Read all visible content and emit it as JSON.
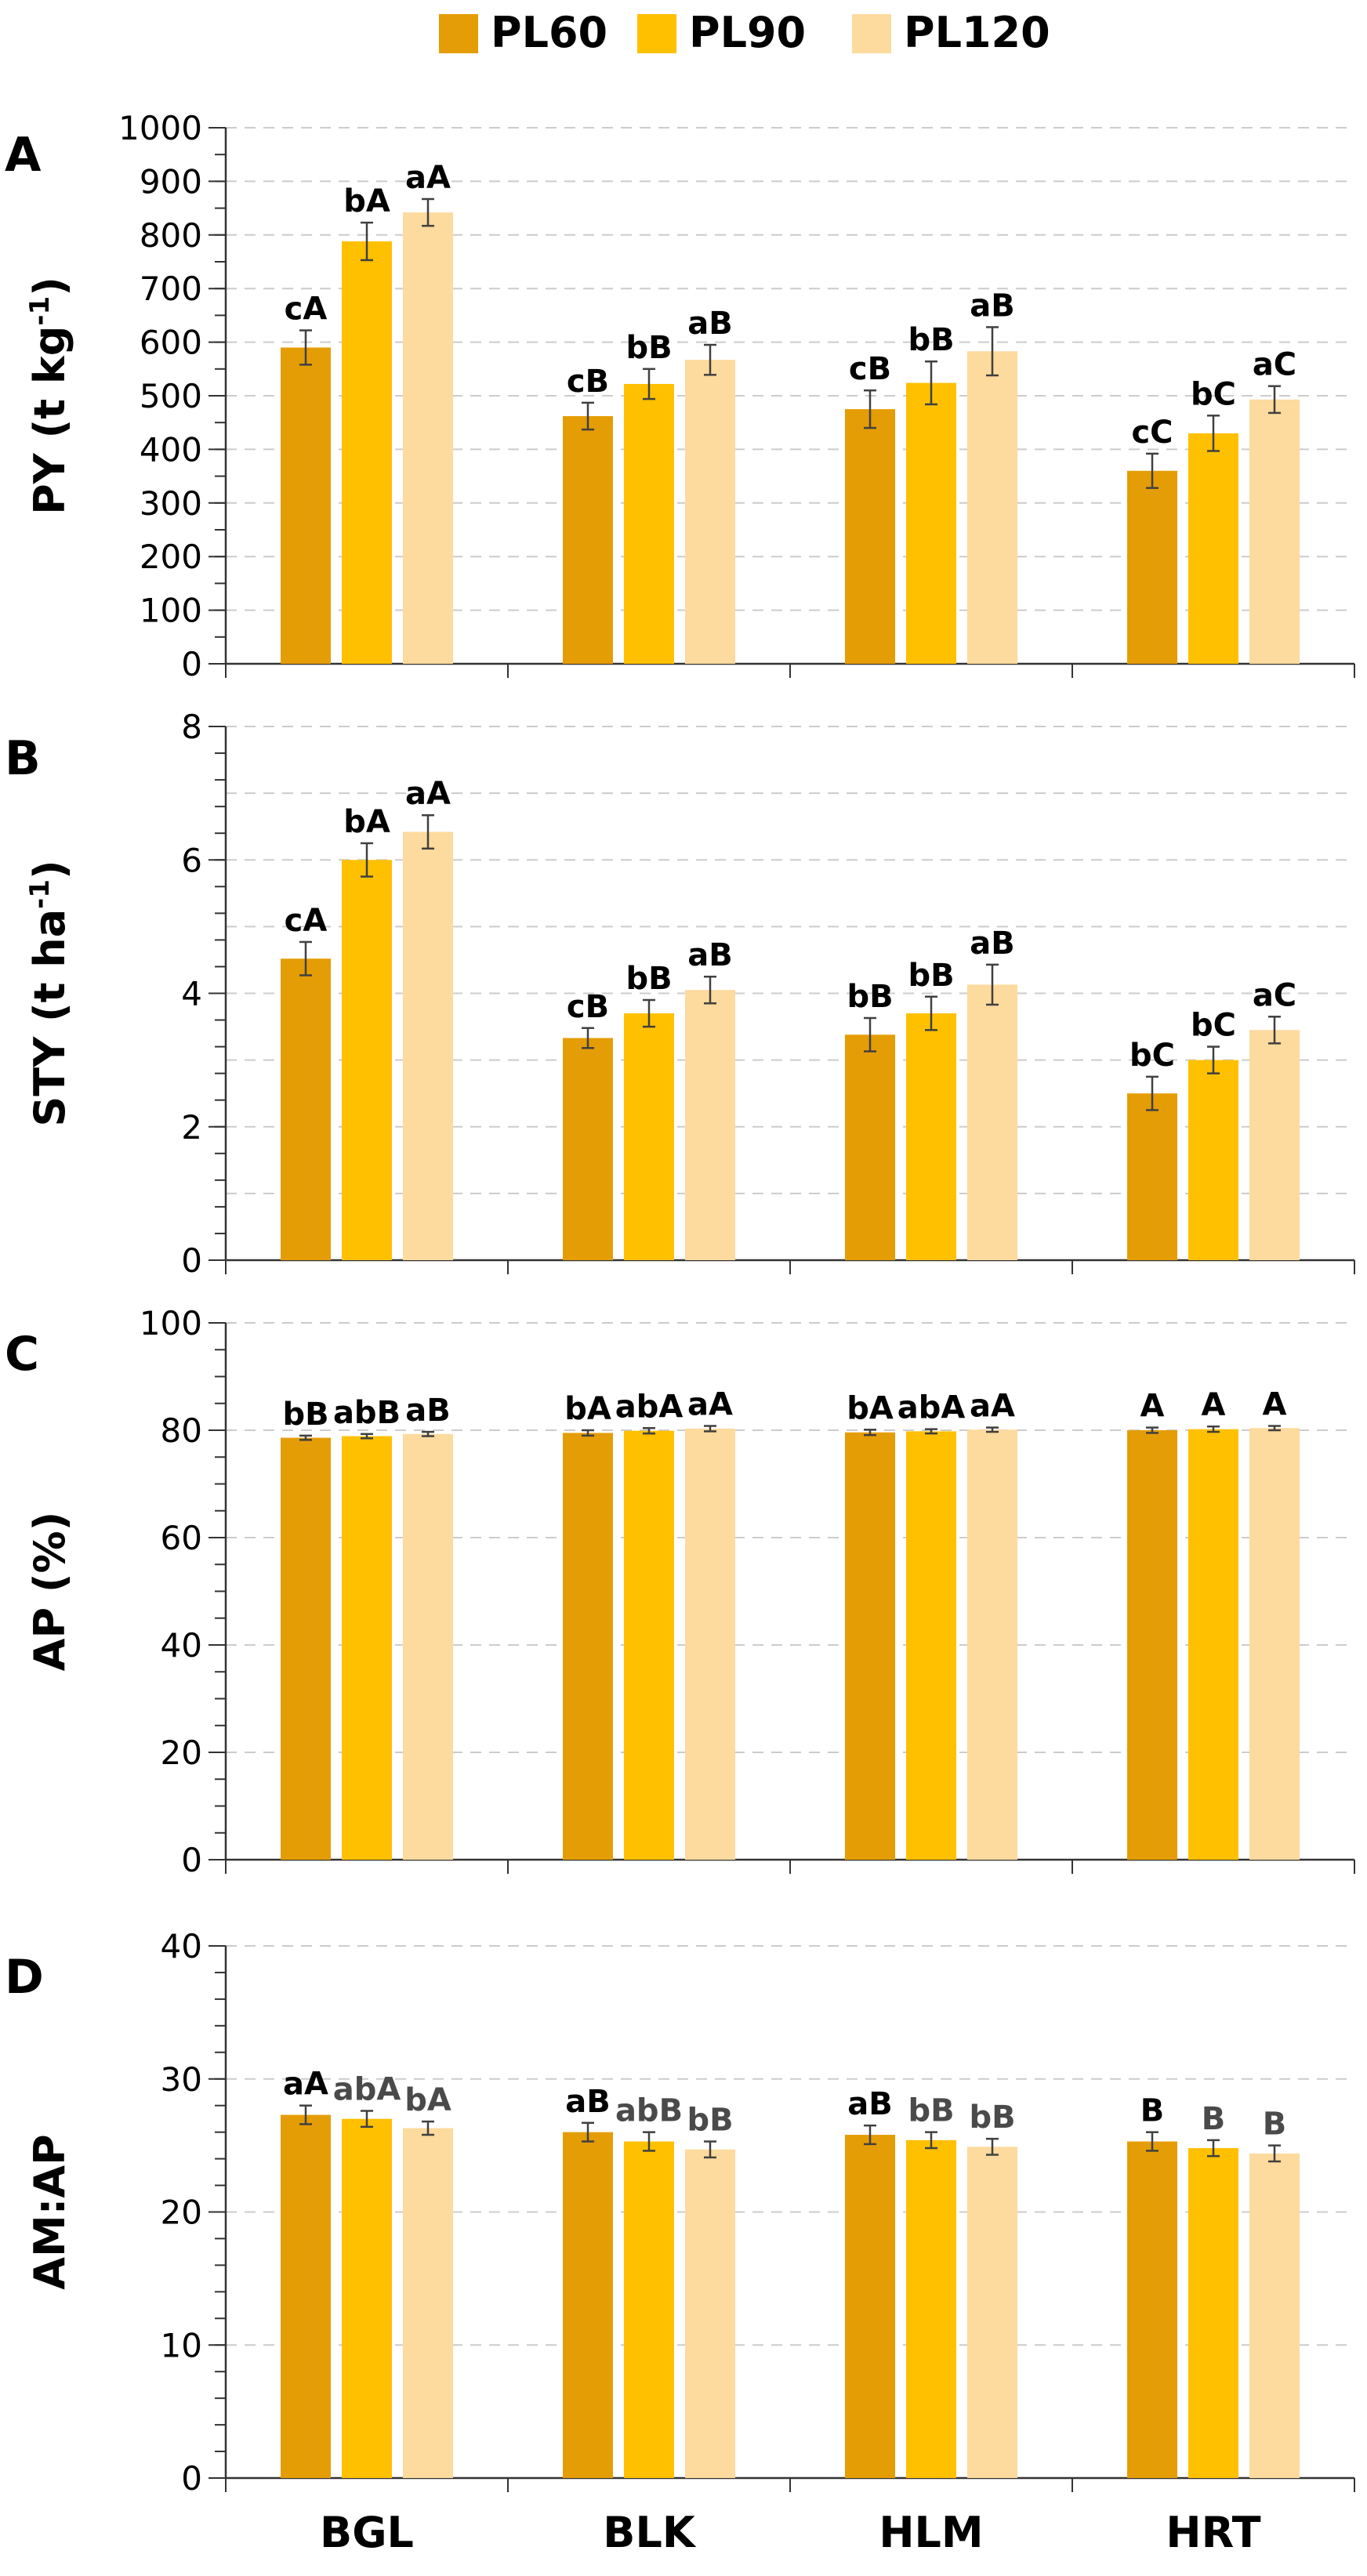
{
  "colors": {
    "PL60": "#E59D05",
    "PL90": "#FFC000",
    "PL120": "#FDDA9D",
    "grid": "#cccccc",
    "axis": "#333333",
    "error": "#404040",
    "label_dark": "#000000",
    "label_gray": "#4a4a4a"
  },
  "legend": {
    "items": [
      {
        "name": "PL60",
        "color_key": "PL60"
      },
      {
        "name": "PL90",
        "color_key": "PL90"
      },
      {
        "name": "PL120",
        "color_key": "PL120"
      }
    ]
  },
  "chart_data": [
    {
      "type": "bar",
      "panel": "A",
      "ylabel": "PY (t kg",
      "ylabel_sup": "-1",
      "ylabel_end": ")",
      "ylim": [
        0,
        1000
      ],
      "yticks": [
        0,
        100,
        200,
        300,
        400,
        500,
        600,
        700,
        800,
        900,
        1000
      ],
      "minor_step": 50,
      "grid_step": 100,
      "categories": [
        "BGL",
        "BLK",
        "HLM",
        "HRT"
      ],
      "series": [
        {
          "name": "PL60",
          "values": [
            590,
            462,
            475,
            360
          ],
          "errors": [
            32,
            25,
            35,
            32
          ]
        },
        {
          "name": "PL90",
          "values": [
            788,
            522,
            524,
            430
          ],
          "errors": [
            35,
            28,
            40,
            33
          ]
        },
        {
          "name": "PL120",
          "values": [
            842,
            567,
            583,
            493
          ],
          "errors": [
            25,
            28,
            45,
            25
          ]
        }
      ],
      "labels": [
        [
          "cA",
          "cB",
          "cB",
          "cC"
        ],
        [
          "bA",
          "bB",
          "bB",
          "bC"
        ],
        [
          "aA",
          "aB",
          "aB",
          "aC"
        ]
      ]
    },
    {
      "type": "bar",
      "panel": "B",
      "ylabel": "STY (t ha",
      "ylabel_sup": "-1",
      "ylabel_end": ")",
      "ylim": [
        0,
        8
      ],
      "yticks": [
        0,
        2,
        4,
        6,
        8
      ],
      "minor_step": 0.4,
      "grid_step": 1,
      "categories": [
        "BGL",
        "BLK",
        "HLM",
        "HRT"
      ],
      "series": [
        {
          "name": "PL60",
          "values": [
            4.52,
            3.33,
            3.38,
            2.5
          ],
          "errors": [
            0.25,
            0.15,
            0.25,
            0.25
          ]
        },
        {
          "name": "PL90",
          "values": [
            6.0,
            3.7,
            3.7,
            3.0
          ],
          "errors": [
            0.25,
            0.2,
            0.25,
            0.2
          ]
        },
        {
          "name": "PL120",
          "values": [
            6.42,
            4.05,
            4.13,
            3.45
          ],
          "errors": [
            0.25,
            0.2,
            0.3,
            0.2
          ]
        }
      ],
      "labels": [
        [
          "cA",
          "cB",
          "bB",
          "bC"
        ],
        [
          "bA",
          "bB",
          "bB",
          "bC"
        ],
        [
          "aA",
          "aB",
          "aB",
          "aC"
        ]
      ]
    },
    {
      "type": "bar",
      "panel": "C",
      "ylabel": "AP (%)",
      "ylabel_sup": "",
      "ylabel_end": "",
      "ylim": [
        0,
        100
      ],
      "yticks": [
        0,
        20,
        40,
        60,
        80,
        100
      ],
      "minor_step": 5,
      "grid_step": 20,
      "categories": [
        "BGL",
        "BLK",
        "HLM",
        "HRT"
      ],
      "series": [
        {
          "name": "PL60",
          "values": [
            78.6,
            79.5,
            79.6,
            80.0
          ],
          "errors": [
            0.4,
            0.5,
            0.5,
            0.5
          ]
        },
        {
          "name": "PL90",
          "values": [
            78.9,
            79.9,
            79.8,
            80.2
          ],
          "errors": [
            0.4,
            0.5,
            0.4,
            0.5
          ]
        },
        {
          "name": "PL120",
          "values": [
            79.3,
            80.3,
            80.1,
            80.4
          ],
          "errors": [
            0.4,
            0.5,
            0.4,
            0.4
          ]
        }
      ],
      "labels": [
        [
          "bB",
          "bA",
          "bA",
          "A"
        ],
        [
          "abB",
          "abA",
          "abA",
          "A"
        ],
        [
          "aB",
          "aA",
          "aA",
          "A"
        ]
      ]
    },
    {
      "type": "bar",
      "panel": "D",
      "ylabel": "AM:AP",
      "ylabel_sup": "",
      "ylabel_end": "",
      "ylim": [
        0,
        40
      ],
      "yticks": [
        0,
        10,
        20,
        30,
        40
      ],
      "minor_step": 2,
      "grid_step": 10,
      "categories": [
        "BGL",
        "BLK",
        "HLM",
        "HRT"
      ],
      "series": [
        {
          "name": "PL60",
          "values": [
            27.3,
            26.0,
            25.8,
            25.3
          ],
          "errors": [
            0.7,
            0.7,
            0.7,
            0.7
          ]
        },
        {
          "name": "PL90",
          "values": [
            27.0,
            25.3,
            25.4,
            24.8
          ],
          "errors": [
            0.6,
            0.7,
            0.6,
            0.6
          ]
        },
        {
          "name": "PL120",
          "values": [
            26.3,
            24.7,
            24.9,
            24.4
          ],
          "errors": [
            0.5,
            0.6,
            0.6,
            0.6
          ]
        }
      ],
      "labels": [
        [
          "aA",
          "aB",
          "aB",
          "B"
        ],
        [
          "abA",
          "abB",
          "bB",
          "B"
        ],
        [
          "bA",
          "bB",
          "bB",
          "B"
        ]
      ],
      "label_gray_series": [
        1,
        2
      ]
    }
  ]
}
